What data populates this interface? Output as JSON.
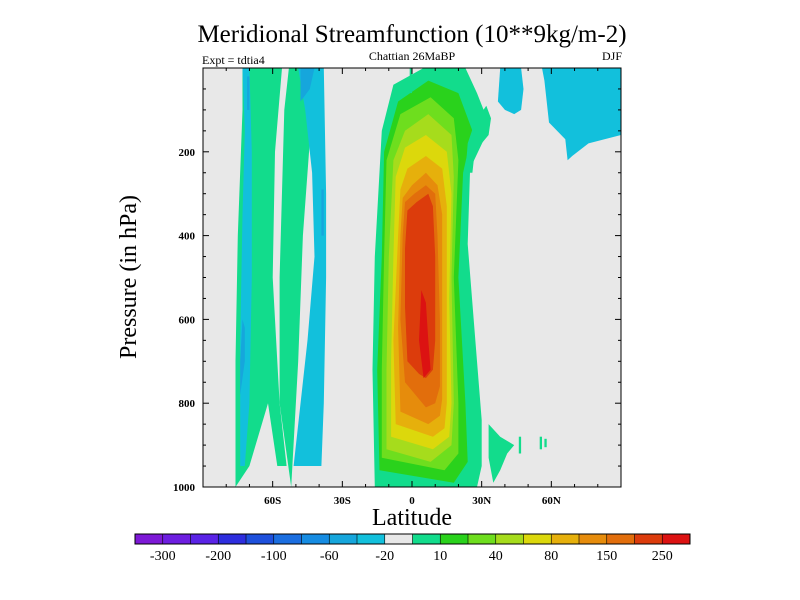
{
  "chart_data": {
    "type": "contour",
    "title": "Meridional Streamfunction (10**9kg/m-2)",
    "subtitle_left": "Expt = tdtia4",
    "subtitle_center": "Chattian  26MaBP",
    "subtitle_right": "DJF",
    "xlabel": "Latitude",
    "ylabel": "Pressure (in hPa)",
    "xlim": [
      -90,
      90
    ],
    "ylim": [
      1000,
      0
    ],
    "x_ticks": [
      {
        "value": -60,
        "label": "60S"
      },
      {
        "value": -30,
        "label": "30S"
      },
      {
        "value": 0,
        "label": "0"
      },
      {
        "value": 30,
        "label": "30N"
      },
      {
        "value": 60,
        "label": "60N"
      }
    ],
    "y_ticks": [
      {
        "value": 200,
        "label": "200"
      },
      {
        "value": 400,
        "label": "400"
      },
      {
        "value": 600,
        "label": "600"
      },
      {
        "value": 800,
        "label": "800"
      },
      {
        "value": 1000,
        "label": "1000"
      }
    ],
    "background_color": "#e8e8e8",
    "colorbar": {
      "labels": [
        "-300",
        "-200",
        "-100",
        "-60",
        "-20",
        "10",
        "40",
        "80",
        "150",
        "250"
      ],
      "colors": [
        "#7d19d6",
        "#6d1ee0",
        "#5a23e6",
        "#2e2ede",
        "#1e50dc",
        "#1b6ee0",
        "#168ce2",
        "#16a6dc",
        "#12c0dc",
        "#e8e8e8",
        "#12dc8c",
        "#2ad21c",
        "#6ede1e",
        "#a6dc1c",
        "#dcd80c",
        "#e6b00c",
        "#e68c0c",
        "#e26e0c",
        "#dc3c0c",
        "#dc1212"
      ]
    },
    "regions": [
      {
        "name": "sh-band-outer",
        "color": "#12dc8c",
        "points": [
          [
            -76,
            1000
          ],
          [
            -76,
            700
          ],
          [
            -75,
            400
          ],
          [
            -73,
            100
          ],
          [
            -73,
            0
          ],
          [
            -56,
            0
          ],
          [
            -59,
            200
          ],
          [
            -60,
            500
          ],
          [
            -57,
            800
          ],
          [
            -54,
            950
          ],
          [
            -58,
            950
          ],
          [
            -62,
            800
          ],
          [
            -70,
            950
          ]
        ]
      },
      {
        "name": "sh-band-inner",
        "color": "#12c0dc",
        "points": [
          [
            -74,
            950
          ],
          [
            -74,
            650
          ],
          [
            -73,
            350
          ],
          [
            -72,
            150
          ],
          [
            -73,
            0
          ],
          [
            -70,
            0
          ],
          [
            -69,
            200
          ],
          [
            -69,
            500
          ],
          [
            -70,
            800
          ],
          [
            -72,
            950
          ]
        ]
      },
      {
        "name": "sh-band-core",
        "color": "#16a6dc",
        "points": [
          [
            -74,
            780
          ],
          [
            -74,
            700
          ],
          [
            -73,
            600
          ],
          [
            -72,
            620
          ],
          [
            -72,
            700
          ]
        ]
      },
      {
        "name": "sh-band-top",
        "color": "#16a6dc",
        "points": [
          [
            -71,
            100
          ],
          [
            -71,
            20
          ],
          [
            -70,
            20
          ],
          [
            -70,
            100
          ]
        ]
      },
      {
        "name": "sh-mid-outer",
        "color": "#12dc8c",
        "points": [
          [
            -52,
            1000
          ],
          [
            -49,
            700
          ],
          [
            -47,
            400
          ],
          [
            -43,
            100
          ],
          [
            -41,
            0
          ],
          [
            -53,
            0
          ],
          [
            -55,
            100
          ],
          [
            -57,
            500
          ],
          [
            -57,
            800
          ]
        ]
      },
      {
        "name": "sh-mid-inner",
        "color": "#12c0dc",
        "points": [
          [
            -51,
            950
          ],
          [
            -45,
            650
          ],
          [
            -42,
            450
          ],
          [
            -43,
            250
          ],
          [
            -46,
            100
          ],
          [
            -49,
            0
          ],
          [
            -38,
            0
          ],
          [
            -37,
            300
          ],
          [
            -37,
            500
          ],
          [
            -38,
            800
          ],
          [
            -39,
            950
          ]
        ]
      },
      {
        "name": "sh-mid-core-a",
        "color": "#16a6dc",
        "points": [
          [
            -48,
            80
          ],
          [
            -48,
            0
          ],
          [
            -42,
            0
          ],
          [
            -44,
            50
          ]
        ]
      },
      {
        "name": "sh-mid-core-b",
        "color": "#16a6dc",
        "points": [
          [
            -39,
            400
          ],
          [
            -39,
            290
          ],
          [
            -38,
            290
          ],
          [
            -38,
            400
          ]
        ]
      },
      {
        "name": "blob-40",
        "color": "#12dc8c",
        "points": [
          [
            -16,
            1000
          ],
          [
            -17,
            720
          ],
          [
            -16,
            450
          ],
          [
            -13,
            150
          ],
          [
            -8,
            40
          ],
          [
            5,
            0
          ],
          [
            23,
            0
          ],
          [
            28,
            60
          ],
          [
            33,
            130
          ],
          [
            31,
            170
          ],
          [
            25,
            240
          ],
          [
            24,
            420
          ],
          [
            28,
            700
          ],
          [
            30,
            840
          ],
          [
            30,
            950
          ],
          [
            28,
            1000
          ]
        ]
      },
      {
        "name": "blob-80",
        "color": "#2ad21c",
        "points": [
          [
            -14,
            960
          ],
          [
            -15,
            720
          ],
          [
            -13,
            450
          ],
          [
            -12,
            200
          ],
          [
            -6,
            80
          ],
          [
            7,
            30
          ],
          [
            20,
            60
          ],
          [
            26,
            150
          ],
          [
            22,
            250
          ],
          [
            20,
            500
          ],
          [
            23,
            800
          ],
          [
            24,
            940
          ],
          [
            18,
            990
          ]
        ]
      },
      {
        "name": "blob-150",
        "color": "#6ede1e",
        "points": [
          [
            -13,
            930
          ],
          [
            -13,
            720
          ],
          [
            -12,
            450
          ],
          [
            -11,
            220
          ],
          [
            -5,
            110
          ],
          [
            8,
            70
          ],
          [
            18,
            120
          ],
          [
            20,
            220
          ],
          [
            18,
            500
          ],
          [
            20,
            800
          ],
          [
            20,
            920
          ],
          [
            14,
            960
          ]
        ]
      },
      {
        "name": "blob-250",
        "color": "#a6dc1c",
        "points": [
          [
            -11,
            910
          ],
          [
            -11,
            720
          ],
          [
            -10,
            450
          ],
          [
            -8,
            220
          ],
          [
            -3,
            150
          ],
          [
            7,
            110
          ],
          [
            17,
            160
          ],
          [
            18,
            260
          ],
          [
            17,
            500
          ],
          [
            18,
            800
          ],
          [
            17,
            900
          ],
          [
            8,
            940
          ]
        ]
      },
      {
        "name": "blob-350",
        "color": "#dcd80c",
        "points": [
          [
            -9,
            880
          ],
          [
            -9,
            700
          ],
          [
            -8,
            450
          ],
          [
            -7,
            260
          ],
          [
            -3,
            190
          ],
          [
            6,
            160
          ],
          [
            15,
            200
          ],
          [
            17,
            300
          ],
          [
            16,
            550
          ],
          [
            17,
            800
          ],
          [
            16,
            880
          ],
          [
            9,
            910
          ]
        ]
      },
      {
        "name": "blob-450",
        "color": "#e6b00c",
        "points": [
          [
            -7,
            850
          ],
          [
            -8,
            650
          ],
          [
            -6,
            400
          ],
          [
            -5,
            290
          ],
          [
            -2,
            240
          ],
          [
            6,
            210
          ],
          [
            13,
            240
          ],
          [
            15,
            330
          ],
          [
            15,
            550
          ],
          [
            15,
            800
          ],
          [
            14,
            860
          ],
          [
            9,
            880
          ]
        ]
      },
      {
        "name": "blob-550",
        "color": "#e68c0c",
        "points": [
          [
            -5,
            820
          ],
          [
            -6,
            620
          ],
          [
            -5,
            400
          ],
          [
            -4,
            310
          ],
          [
            0,
            280
          ],
          [
            6,
            250
          ],
          [
            11,
            280
          ],
          [
            13,
            350
          ],
          [
            13,
            550
          ],
          [
            13,
            790
          ],
          [
            12,
            830
          ],
          [
            7,
            850
          ]
        ]
      },
      {
        "name": "blob-650",
        "color": "#e26e0c",
        "points": [
          [
            -3,
            750
          ],
          [
            -5,
            600
          ],
          [
            -4,
            400
          ],
          [
            -3,
            320
          ],
          [
            1,
            300
          ],
          [
            6,
            280
          ],
          [
            10,
            300
          ],
          [
            11,
            400
          ],
          [
            12,
            600
          ],
          [
            12,
            760
          ],
          [
            10,
            800
          ],
          [
            6,
            810
          ]
        ]
      },
      {
        "name": "blob-750",
        "color": "#dc3c0c",
        "points": [
          [
            -2,
            700
          ],
          [
            -3,
            570
          ],
          [
            -3,
            430
          ],
          [
            -2,
            340
          ],
          [
            2,
            320
          ],
          [
            7,
            300
          ],
          [
            9,
            330
          ],
          [
            10,
            450
          ],
          [
            10,
            650
          ],
          [
            9,
            720
          ],
          [
            6,
            740
          ],
          [
            3,
            730
          ]
        ]
      },
      {
        "name": "blob-core",
        "color": "#dc1212",
        "points": [
          [
            5,
            740
          ],
          [
            3,
            650
          ],
          [
            4,
            530
          ],
          [
            6,
            560
          ],
          [
            7,
            650
          ],
          [
            8,
            720
          ]
        ]
      },
      {
        "name": "nh-streak",
        "color": "#12dc8c",
        "points": [
          [
            -1,
            60
          ],
          [
            -1,
            0
          ],
          [
            0,
            0
          ],
          [
            0,
            60
          ]
        ]
      },
      {
        "name": "nh-upper-lobe",
        "color": "#12dc8c",
        "points": [
          [
            23,
            250
          ],
          [
            24,
            180
          ],
          [
            27,
            130
          ],
          [
            32,
            90
          ],
          [
            34,
            120
          ],
          [
            33,
            160
          ],
          [
            27,
            200
          ],
          [
            26,
            250
          ]
        ]
      },
      {
        "name": "nh-spot-a",
        "color": "#12dc8c",
        "points": [
          [
            35,
            990
          ],
          [
            33,
            930
          ],
          [
            33,
            850
          ],
          [
            38,
            880
          ],
          [
            44,
            900
          ],
          [
            41,
            920
          ],
          [
            38,
            960
          ]
        ]
      },
      {
        "name": "nh-spot-b",
        "color": "#12dc8c",
        "points": [
          [
            46,
            920
          ],
          [
            46,
            880
          ],
          [
            47,
            880
          ],
          [
            47,
            920
          ]
        ]
      },
      {
        "name": "nh-spot-c",
        "color": "#12dc8c",
        "points": [
          [
            55,
            910
          ],
          [
            55,
            880
          ],
          [
            56,
            880
          ],
          [
            56,
            910
          ]
        ]
      },
      {
        "name": "nh-spot-d",
        "color": "#12dc8c",
        "points": [
          [
            57,
            905
          ],
          [
            57,
            885
          ],
          [
            58,
            885
          ],
          [
            58,
            905
          ]
        ]
      },
      {
        "name": "nh-teal-left",
        "color": "#12c0dc",
        "points": [
          [
            37,
            80
          ],
          [
            38,
            0
          ],
          [
            47,
            0
          ],
          [
            48,
            50
          ],
          [
            47,
            100
          ],
          [
            44,
            110
          ],
          [
            40,
            100
          ]
        ]
      },
      {
        "name": "nh-teal-right",
        "color": "#12c0dc",
        "points": [
          [
            56,
            0
          ],
          [
            90,
            0
          ],
          [
            90,
            160
          ],
          [
            76,
            180
          ],
          [
            69,
            210
          ],
          [
            67,
            220
          ],
          [
            66,
            170
          ],
          [
            59,
            130
          ],
          [
            58,
            80
          ],
          [
            57,
            30
          ]
        ]
      }
    ]
  }
}
